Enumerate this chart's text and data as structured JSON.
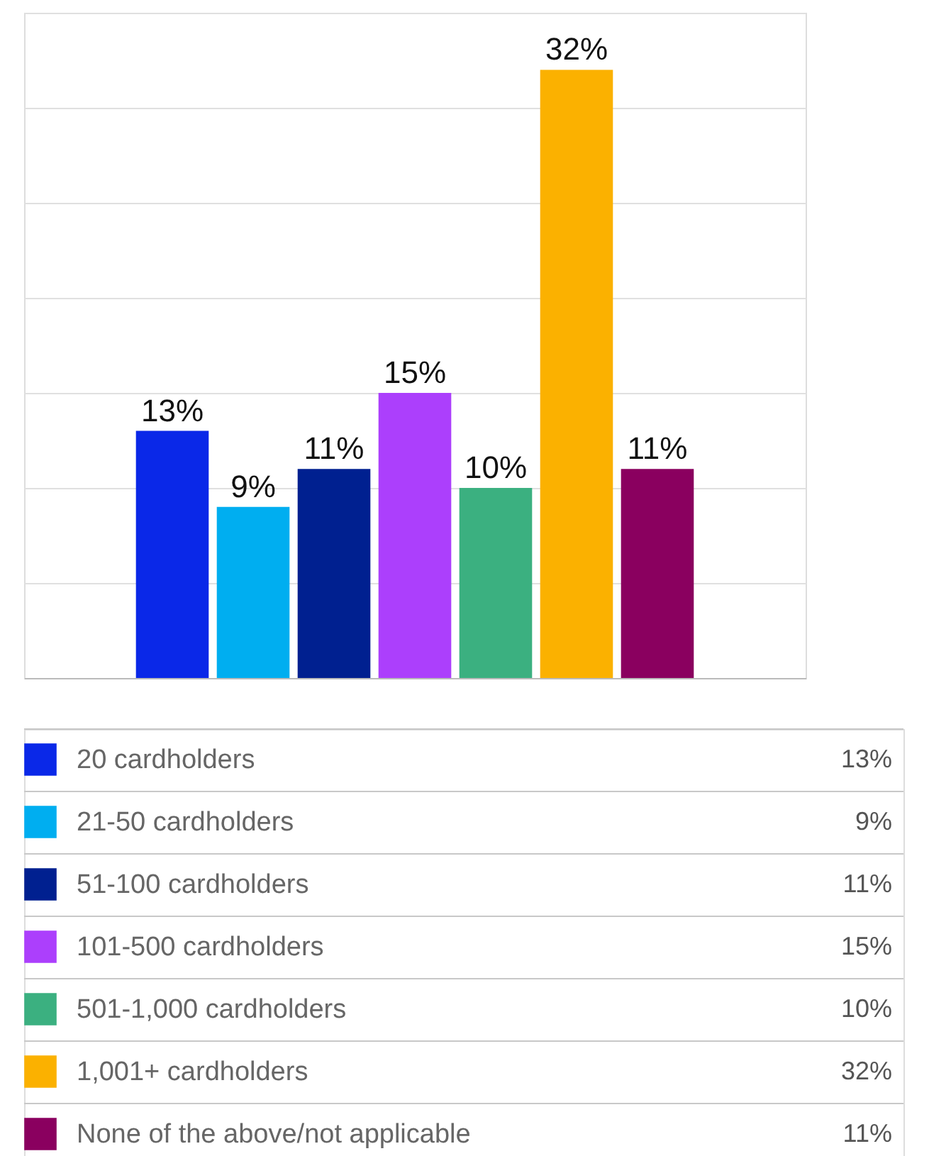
{
  "chart_data": {
    "type": "bar",
    "categories": [
      null
    ],
    "series": [
      {
        "name": "20 cardholders",
        "color": "#0a28e8",
        "values": [
          13
        ],
        "value_labels": [
          "13%"
        ]
      },
      {
        "name": "21-50 cardholders",
        "color": "#00aef0",
        "values": [
          9
        ],
        "value_labels": [
          "9%"
        ]
      },
      {
        "name": "51-100 cardholders",
        "color": "#002090",
        "values": [
          11
        ],
        "value_labels": [
          "11%"
        ]
      },
      {
        "name": "101-500 cardholders",
        "color": "#ac3ffc",
        "values": [
          15
        ],
        "value_labels": [
          "15%"
        ]
      },
      {
        "name": "501-1,000 cardholders",
        "color": "#3bb080",
        "values": [
          10
        ],
        "value_labels": [
          "10%"
        ]
      },
      {
        "name": "1,001+ cardholders",
        "color": "#fbb100",
        "values": [
          32
        ],
        "value_labels": [
          "32%"
        ]
      },
      {
        "name": "None of the above/not applicable",
        "color": "#8a005f",
        "values": [
          11
        ],
        "value_labels": [
          "11%"
        ]
      }
    ],
    "ylim": [
      0,
      35
    ],
    "yticks": [
      0,
      5,
      10,
      15,
      20,
      25,
      30,
      35
    ],
    "grid": "y",
    "legend": "bottom",
    "tick_labels": false
  }
}
